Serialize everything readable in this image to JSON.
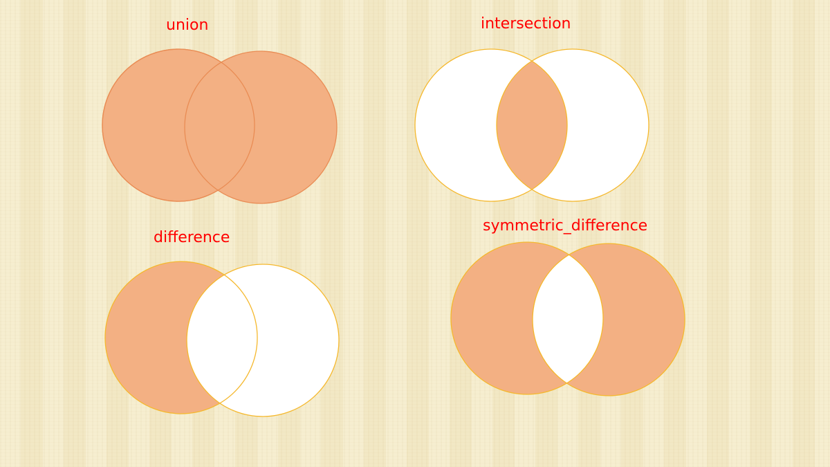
{
  "labels": {
    "union": "union",
    "intersection": "intersection",
    "difference": "difference",
    "symmetric_difference": "symmetric_difference"
  },
  "colors": {
    "fill": "#f3b083",
    "white": "#ffffff",
    "union_stroke": "#e98c54",
    "stroke": "#f5b82d",
    "label": "#ff0000",
    "background": "#f5ecca"
  }
}
